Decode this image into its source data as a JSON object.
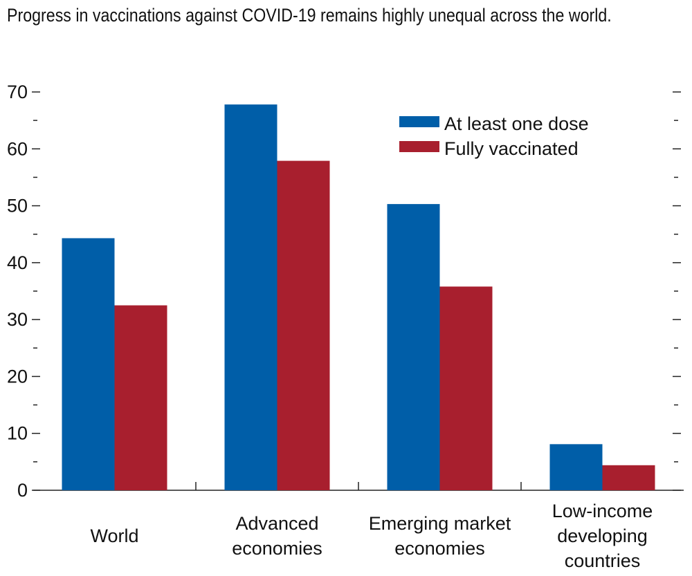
{
  "chart_data": {
    "type": "bar",
    "title": "Progress in vaccinations against COVID-19 remains highly unequal across the world.",
    "categories": [
      [
        "World"
      ],
      [
        "Advanced",
        "economies"
      ],
      [
        "Emerging market",
        "economies"
      ],
      [
        "Low-income",
        "developing",
        "countries"
      ]
    ],
    "series": [
      {
        "name": "At least one dose",
        "color": "#005ea8",
        "values": [
          44.3,
          67.8,
          50.3,
          8.1
        ]
      },
      {
        "name": "Fully vaccinated",
        "color": "#a81f2e",
        "values": [
          32.5,
          57.9,
          35.8,
          4.4
        ]
      }
    ],
    "ylim": [
      0,
      70
    ],
    "yticks": [
      0,
      10,
      20,
      30,
      40,
      50,
      60,
      70
    ],
    "minor_ticks": true,
    "right_axis_ticks": true,
    "grid": false,
    "legend_position": "top-right"
  }
}
